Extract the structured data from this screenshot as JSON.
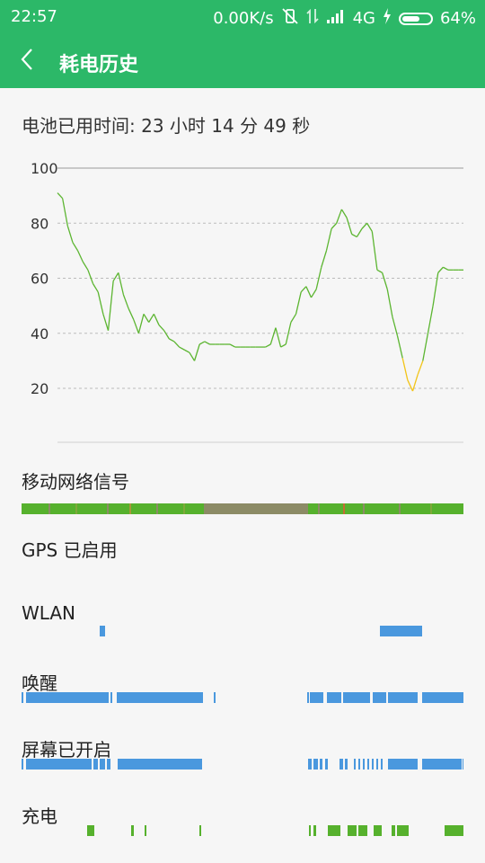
{
  "status_bar": {
    "time": "22:57",
    "net_speed": "0.00K/s",
    "network_type": "4G",
    "battery_percent": "64%",
    "battery_level": 0.64,
    "icons": [
      "vibrate-off-icon",
      "data-transfer-icon",
      "signal-icon",
      "charging-bolt-icon",
      "battery-icon"
    ]
  },
  "header": {
    "back_icon": "chevron-left-icon",
    "title": "耗电历史"
  },
  "battery_usage": {
    "text": "电池已用时间: 23 小时 14 分 49 秒"
  },
  "chart_data": {
    "type": "line",
    "ylim": [
      0,
      100
    ],
    "y_ticks": [
      "100",
      "80",
      "60",
      "40",
      "20"
    ],
    "grid": true,
    "colors": {
      "normal": "#5cb531",
      "low": "#f2c418"
    },
    "x": [
      0,
      1,
      2,
      3,
      4,
      5,
      6,
      7,
      8,
      9,
      10,
      11,
      12,
      13,
      14,
      15,
      16,
      17,
      18,
      19,
      20,
      21,
      22,
      23,
      24,
      25,
      26,
      27,
      28,
      29,
      30,
      31,
      32,
      33,
      34,
      35,
      36,
      37,
      38,
      39,
      40,
      41,
      42,
      43,
      44,
      45,
      46,
      47,
      48,
      49,
      50,
      51,
      52,
      53,
      54,
      55,
      56,
      57,
      58,
      59,
      60,
      61,
      62,
      63,
      64,
      65,
      66,
      67,
      68,
      69,
      70,
      71,
      72,
      73,
      74,
      75,
      76,
      77,
      78,
      79,
      80
    ],
    "values": [
      91,
      89,
      79,
      73,
      70,
      66,
      63,
      58,
      55,
      47,
      41,
      59,
      62,
      54,
      49,
      45,
      40,
      47,
      44,
      47,
      43,
      41,
      38,
      37,
      35,
      34,
      33,
      30,
      36,
      37,
      36,
      36,
      36,
      36,
      36,
      35,
      35,
      35,
      35,
      35,
      35,
      35,
      36,
      42,
      35,
      36,
      44,
      47,
      55,
      57,
      53,
      56,
      64,
      70,
      78,
      80,
      85,
      82,
      76,
      75,
      78,
      80,
      77,
      63,
      62,
      56,
      46,
      39,
      31,
      23,
      19,
      25,
      30,
      40,
      50,
      62,
      64,
      63,
      63,
      63,
      63
    ],
    "low_battery_range": [
      68,
      72
    ]
  },
  "sections": [
    {
      "label": "移动网络信号"
    },
    {
      "label": "GPS 已启用"
    },
    {
      "label": "WLAN"
    },
    {
      "label": "唤醒"
    },
    {
      "label": "屏幕已开启"
    },
    {
      "label": "充电"
    }
  ],
  "colors": {
    "accent": "#2cb868",
    "timeline_blue": "#4a98de",
    "timeline_green": "#56b12d",
    "signal_gray": "#8c8b66"
  }
}
